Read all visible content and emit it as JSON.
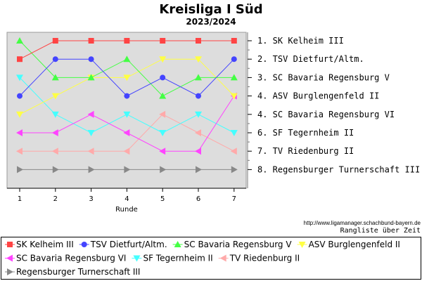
{
  "chart_data": {
    "type": "line",
    "title": "Kreisliga I Süd",
    "subtitle": "2023/2024",
    "xlabel": "Runde",
    "x": [
      1,
      2,
      3,
      4,
      5,
      6,
      7
    ],
    "ylim": [
      1,
      8
    ],
    "y_inverted": true,
    "grid": false,
    "legend_position": "bottom",
    "series": [
      {
        "name": "SK Kelheim III",
        "color": "#ff4444",
        "marker": "square",
        "values": [
          2,
          1,
          1,
          1,
          1,
          1,
          1
        ]
      },
      {
        "name": "TSV Dietfurt/Altm.",
        "color": "#4444ff",
        "marker": "circle",
        "values": [
          4,
          2,
          2,
          4,
          3,
          4,
          2
        ]
      },
      {
        "name": "SC Bavaria Regensburg V",
        "color": "#44ff44",
        "marker": "triangle-up",
        "values": [
          1,
          3,
          3,
          2,
          4,
          3,
          3
        ]
      },
      {
        "name": "ASV Burglengenfeld II",
        "color": "#ffff44",
        "marker": "triangle-down",
        "values": [
          5,
          4,
          3,
          3,
          2,
          2,
          4
        ]
      },
      {
        "name": "SC Bavaria Regensburg VI",
        "color": "#ff44ff",
        "marker": "triangle-left",
        "values": [
          6,
          6,
          5,
          6,
          7,
          7,
          4
        ]
      },
      {
        "name": "SF Tegernheim II",
        "color": "#44ffff",
        "marker": "triangle-down",
        "values": [
          3,
          5,
          6,
          5,
          6,
          5,
          6
        ]
      },
      {
        "name": "TV Riedenburg II",
        "color": "#ffaaaa",
        "marker": "triangle-left",
        "values": [
          7,
          7,
          7,
          7,
          5,
          6,
          7
        ]
      },
      {
        "name": "Regensburger Turnerschaft III",
        "color": "#888888",
        "marker": "triangle-right",
        "values": [
          8,
          8,
          8,
          8,
          8,
          8,
          8
        ]
      }
    ],
    "ranking_labels": [
      "1. SK Kelheim III",
      "2. TSV Dietfurt/Altm.",
      "3. SC Bavaria Regensburg V",
      "4. ASV Burglengenfeld II",
      "4. SC Bavaria Regensburg VI",
      "6. SF Tegernheim II",
      "7. TV Riedenburg II",
      "8. Regensburger Turnerschaft III"
    ],
    "source_url": "http://www.ligamanager.schachbund-bayern.de",
    "footer_note": "Rangliste über Zeit"
  },
  "colors": {
    "plot_background": "#dddddd",
    "page_background": "#ffffff"
  }
}
